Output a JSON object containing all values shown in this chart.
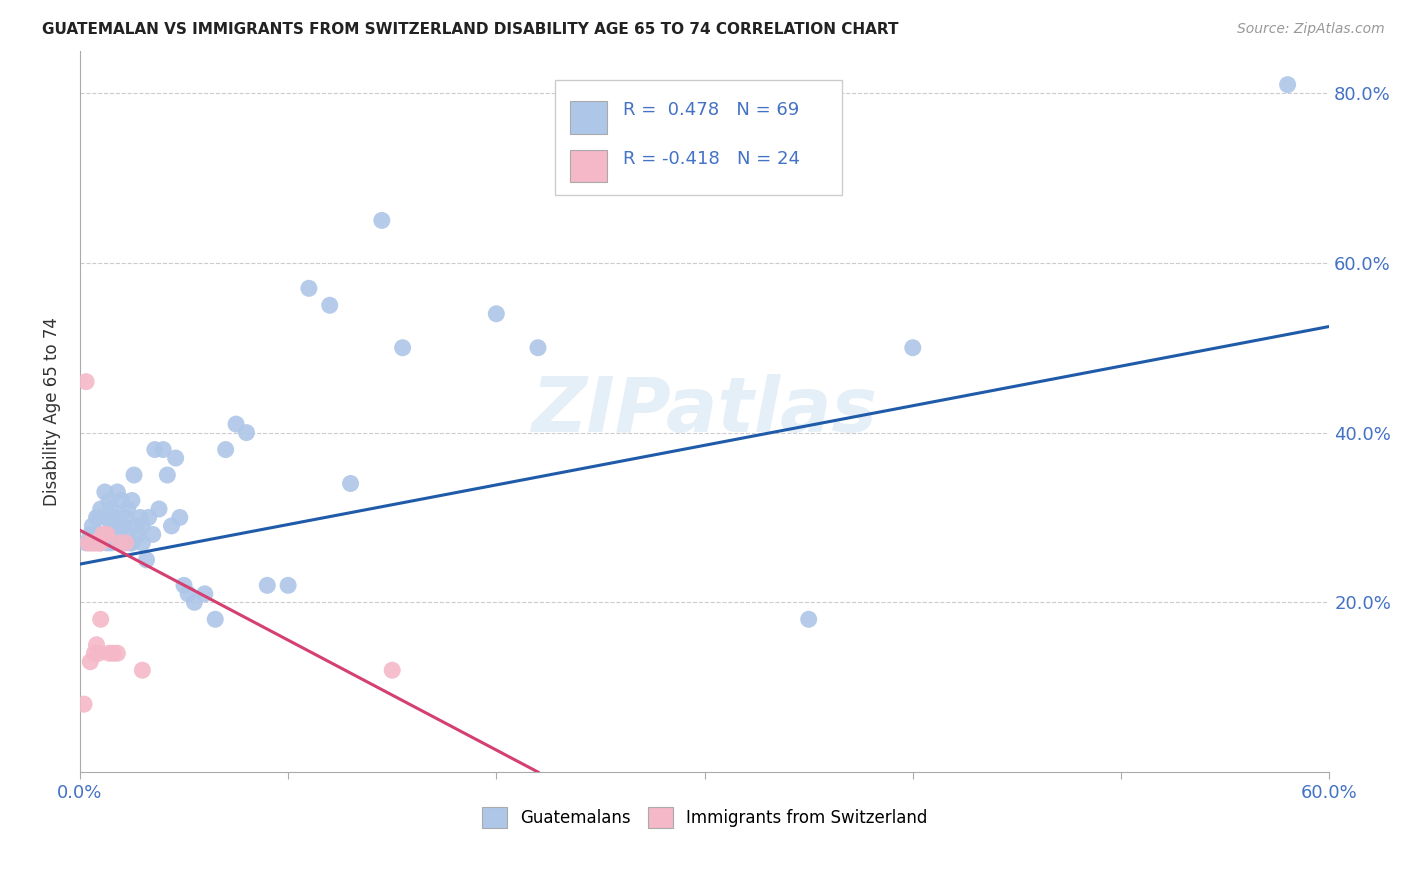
{
  "title": "GUATEMALAN VS IMMIGRANTS FROM SWITZERLAND DISABILITY AGE 65 TO 74 CORRELATION CHART",
  "source": "Source: ZipAtlas.com",
  "ylabel": "Disability Age 65 to 74",
  "xlim": [
    0.0,
    0.6
  ],
  "ylim": [
    0.0,
    0.85
  ],
  "xticks": [
    0.0,
    0.1,
    0.2,
    0.3,
    0.4,
    0.5,
    0.6
  ],
  "yticks_right": [
    0.2,
    0.4,
    0.6,
    0.8
  ],
  "ytick_labels_right": [
    "20.0%",
    "40.0%",
    "60.0%",
    "80.0%"
  ],
  "blue_R": 0.478,
  "blue_N": 69,
  "pink_R": -0.418,
  "pink_N": 24,
  "blue_color": "#aec6e8",
  "blue_line_color": "#1f5ba8",
  "pink_color": "#f4b8c8",
  "pink_line_color": "#d44070",
  "background_color": "#ffffff",
  "watermark": "ZIPatlas",
  "blue_scatter_x": [
    0.003,
    0.005,
    0.006,
    0.007,
    0.008,
    0.009,
    0.01,
    0.01,
    0.011,
    0.012,
    0.012,
    0.013,
    0.013,
    0.014,
    0.015,
    0.015,
    0.015,
    0.016,
    0.016,
    0.017,
    0.018,
    0.018,
    0.019,
    0.02,
    0.02,
    0.021,
    0.021,
    0.022,
    0.022,
    0.023,
    0.024,
    0.025,
    0.025,
    0.026,
    0.027,
    0.028,
    0.029,
    0.03,
    0.03,
    0.032,
    0.033,
    0.035,
    0.036,
    0.038,
    0.04,
    0.042,
    0.044,
    0.046,
    0.048,
    0.05,
    0.052,
    0.055,
    0.06,
    0.065,
    0.07,
    0.075,
    0.08,
    0.09,
    0.1,
    0.11,
    0.12,
    0.13,
    0.145,
    0.155,
    0.2,
    0.22,
    0.35,
    0.4,
    0.58
  ],
  "blue_scatter_y": [
    0.27,
    0.28,
    0.29,
    0.28,
    0.3,
    0.3,
    0.27,
    0.31,
    0.28,
    0.28,
    0.33,
    0.3,
    0.27,
    0.32,
    0.29,
    0.27,
    0.31,
    0.28,
    0.3,
    0.3,
    0.29,
    0.33,
    0.29,
    0.27,
    0.32,
    0.29,
    0.27,
    0.3,
    0.28,
    0.31,
    0.27,
    0.27,
    0.32,
    0.35,
    0.29,
    0.28,
    0.3,
    0.29,
    0.27,
    0.25,
    0.3,
    0.28,
    0.38,
    0.31,
    0.38,
    0.35,
    0.29,
    0.37,
    0.3,
    0.22,
    0.21,
    0.2,
    0.21,
    0.18,
    0.38,
    0.41,
    0.4,
    0.22,
    0.22,
    0.57,
    0.55,
    0.34,
    0.65,
    0.5,
    0.54,
    0.5,
    0.18,
    0.5,
    0.81
  ],
  "pink_scatter_x": [
    0.002,
    0.003,
    0.004,
    0.005,
    0.005,
    0.006,
    0.007,
    0.007,
    0.008,
    0.008,
    0.009,
    0.009,
    0.01,
    0.01,
    0.011,
    0.012,
    0.013,
    0.014,
    0.016,
    0.018,
    0.019,
    0.022,
    0.03,
    0.15
  ],
  "pink_scatter_y": [
    0.08,
    0.46,
    0.27,
    0.27,
    0.13,
    0.27,
    0.27,
    0.14,
    0.27,
    0.15,
    0.14,
    0.27,
    0.27,
    0.18,
    0.28,
    0.28,
    0.28,
    0.14,
    0.14,
    0.14,
    0.27,
    0.27,
    0.12,
    0.12
  ],
  "blue_line_x": [
    0.0,
    0.6
  ],
  "blue_line_y": [
    0.245,
    0.525
  ],
  "pink_line_x": [
    0.0,
    0.22
  ],
  "pink_line_y": [
    0.285,
    0.0
  ],
  "legend_blue_text": "R =  0.478   N = 69",
  "legend_pink_text": "R = -0.418   N = 24",
  "bottom_label_blue": "Guatemalans",
  "bottom_label_pink": "Immigrants from Switzerland"
}
